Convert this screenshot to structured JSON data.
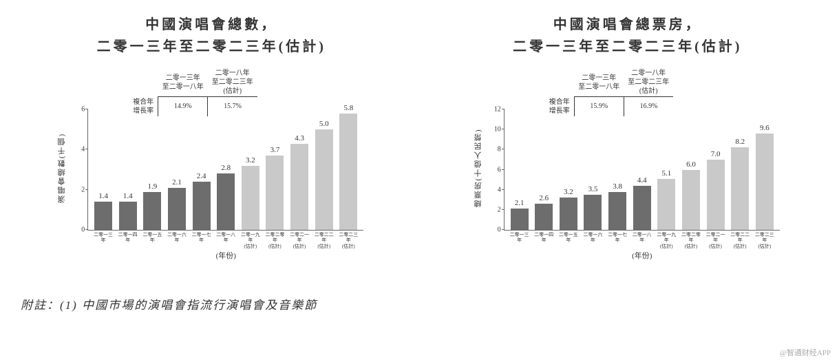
{
  "colors": {
    "historic_bar": "#6d6d6d",
    "forecast_bar": "#c9c9c9",
    "axis": "#666666",
    "text": "#333333",
    "background": "#ffffff"
  },
  "chart_left": {
    "title_line1": "中國演唱會總數，",
    "title_line2": "二零一三年至二零二三年(估計)",
    "ylabel": "演唱會總數(千個)",
    "xlabel": "(年份)",
    "ylim_max": 6,
    "yticks": [
      0,
      2,
      4,
      6
    ],
    "cagr": {
      "row_label": "複合年\n增長率",
      "period1_header": "二零一三年\n至二零一八年",
      "period1_value": "14.9%",
      "period2_header": "二零一八年\n至二零二三年\n(估計)",
      "period2_value": "15.7%"
    },
    "categories": [
      "二零一三年",
      "二零一四年",
      "二零一五年",
      "二零一六年",
      "二零一七年",
      "二零一八年",
      "二零一九年\n(估計)",
      "二零二零年\n(估計)",
      "二零二一年\n(估計)",
      "二零二二年\n(估計)",
      "二零二三年\n(估計)"
    ],
    "values": [
      1.4,
      1.4,
      1.9,
      2.1,
      2.4,
      2.8,
      3.2,
      3.7,
      4.3,
      5.0,
      5.8
    ],
    "is_forecast": [
      false,
      false,
      false,
      false,
      false,
      false,
      true,
      true,
      true,
      true,
      true
    ]
  },
  "chart_right": {
    "title_line1": "中國演唱會總票房，",
    "title_line2": "二零一三年至二零二三年(估計)",
    "ylabel": "總票房(十億人民幣)",
    "xlabel": "(年份)",
    "ylim_max": 12,
    "yticks": [
      0,
      2,
      4,
      6,
      8,
      10,
      12
    ],
    "cagr": {
      "row_label": "複合年\n增長率",
      "period1_header": "二零一三年\n至二零一八年",
      "period1_value": "15.9%",
      "period2_header": "二零一八年\n至二零二三年\n(估計)",
      "period2_value": "16.9%"
    },
    "categories": [
      "二零一三年",
      "二零一四年",
      "二零一五年",
      "二零一六年",
      "二零一七年",
      "二零一八年",
      "二零一九年\n(估計)",
      "二零二零年\n(估計)",
      "二零二一年\n(估計)",
      "二零二二年\n(估計)",
      "二零二三年\n(估計)"
    ],
    "values": [
      2.1,
      2.6,
      3.2,
      3.5,
      3.8,
      4.4,
      5.1,
      6.0,
      7.0,
      8.2,
      9.6
    ],
    "is_forecast": [
      false,
      false,
      false,
      false,
      false,
      false,
      true,
      true,
      true,
      true,
      true
    ]
  },
  "footnote": "附註：(1) 中國市場的演唱會指流行演唱會及音樂節",
  "watermark": "@智通财经APP"
}
